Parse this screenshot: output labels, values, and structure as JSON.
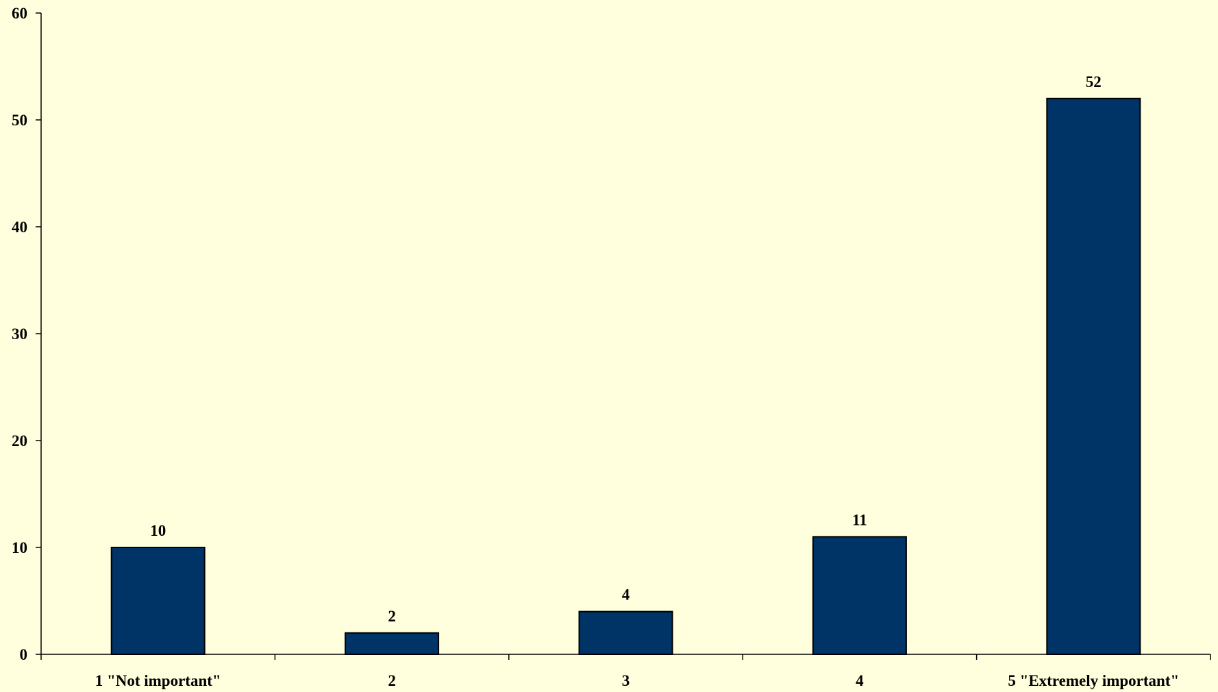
{
  "colors": {
    "background": "#FFFFDD",
    "bar_fill": "#003366",
    "bar_stroke": "#000000",
    "axis": "#000000"
  },
  "chart_data": {
    "type": "bar",
    "categories": [
      "1 \"Not important\"",
      "2",
      "3",
      "4",
      "5 \"Extremely important\""
    ],
    "values": [
      10,
      2,
      4,
      11,
      52
    ],
    "data_labels": [
      "10",
      "2",
      "4",
      "11",
      "52"
    ],
    "title": "",
    "xlabel": "",
    "ylabel": "",
    "ylim": [
      0,
      60
    ],
    "yticks": [
      0,
      10,
      20,
      30,
      40,
      50,
      60
    ],
    "ytick_labels": [
      "0",
      "10",
      "20",
      "30",
      "40",
      "50",
      "60"
    ],
    "grid": false,
    "legend": "none"
  }
}
